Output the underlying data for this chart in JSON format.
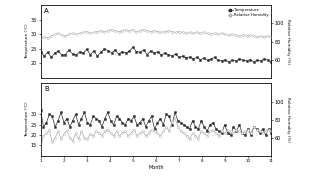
{
  "xlabel": "Month",
  "ylabel_temp": "Temperature (°C)",
  "ylabel_rh": "Relative Humidity (%)",
  "panel_A_label": "A",
  "panel_B_label": "B",
  "legend_temp": "Temperature",
  "legend_rh": "Relative Humidity",
  "A_temp": [
    24.0,
    22.5,
    23.8,
    22.0,
    23.5,
    24.2,
    22.8,
    23.0,
    24.5,
    23.2,
    22.8,
    24.0,
    23.5,
    24.8,
    23.0,
    24.2,
    22.5,
    23.8,
    25.0,
    24.3,
    23.7,
    24.5,
    23.2,
    24.0,
    23.5,
    24.2,
    25.5,
    24.0,
    23.8,
    24.5,
    23.0,
    24.2,
    23.5,
    24.0,
    22.8,
    23.5,
    23.0,
    22.5,
    23.2,
    22.0,
    22.5,
    21.8,
    22.2,
    21.5,
    22.0,
    21.2,
    21.8,
    21.0,
    21.5,
    22.0,
    21.0,
    20.8,
    21.2,
    20.5,
    21.0,
    20.8,
    21.5,
    21.0,
    20.8,
    21.2,
    20.5,
    21.0,
    20.8,
    21.5,
    21.0,
    20.5
  ],
  "A_rh": [
    84,
    85,
    84,
    86,
    88,
    89,
    87,
    86,
    88,
    89,
    88,
    89,
    90,
    91,
    89,
    90,
    91,
    92,
    91,
    92,
    93,
    92,
    91,
    92,
    93,
    92,
    93,
    91,
    92,
    93,
    92,
    91,
    92,
    91,
    90,
    91,
    92,
    91,
    90,
    91,
    90,
    89,
    90,
    89,
    90,
    89,
    90,
    89,
    88,
    89,
    88,
    89,
    88,
    87,
    88,
    87,
    86,
    87,
    86,
    87,
    86,
    85,
    86,
    85,
    86,
    85
  ],
  "B_temp": [
    32,
    24,
    26,
    30,
    29,
    24,
    27,
    31,
    26,
    28,
    24,
    27,
    30,
    25,
    28,
    31,
    26,
    25,
    29,
    28,
    27,
    24,
    28,
    31,
    27,
    25,
    29,
    28,
    26,
    25,
    28,
    27,
    29,
    25,
    26,
    28,
    24,
    27,
    29,
    23,
    26,
    28,
    25,
    30,
    29,
    25,
    31,
    27,
    26,
    25,
    24,
    23,
    27,
    24,
    23,
    27,
    24,
    22,
    25,
    26,
    23,
    22,
    21,
    25,
    21,
    20,
    24,
    22,
    25,
    21,
    20,
    23,
    20,
    24,
    23,
    21,
    23,
    20,
    23,
    21
  ],
  "B_rh": [
    48,
    62,
    65,
    68,
    55,
    60,
    67,
    58,
    64,
    68,
    60,
    56,
    65,
    58,
    67,
    60,
    58,
    64,
    62,
    67,
    65,
    62,
    67,
    69,
    65,
    62,
    67,
    62,
    65,
    67,
    62,
    65,
    69,
    62,
    65,
    67,
    62,
    65,
    69,
    67,
    65,
    62,
    67,
    72,
    67,
    77,
    82,
    72,
    67,
    65,
    62,
    58,
    65,
    62,
    59,
    67,
    65,
    62,
    67,
    69,
    65,
    62,
    67,
    65,
    69,
    67,
    65,
    69,
    67,
    65,
    67,
    69,
    65,
    72,
    69,
    67,
    65,
    67,
    69,
    67
  ],
  "A_ylim_temp": [
    15,
    40
  ],
  "A_ylim_rh": [
    40,
    120
  ],
  "B_ylim_temp": [
    10,
    45
  ],
  "B_ylim_rh": [
    40,
    120
  ],
  "A_yticks_temp": [
    20,
    25,
    30,
    35
  ],
  "B_yticks_temp": [
    15,
    20,
    25,
    30
  ],
  "A_rh_yticks": [
    60,
    80,
    100
  ],
  "B_rh_yticks": [
    60,
    80,
    100
  ],
  "line_color_temp": "#2a2a2a",
  "line_color_rh": "#aaaaaa",
  "background_color": "#ffffff",
  "n_points": 66
}
